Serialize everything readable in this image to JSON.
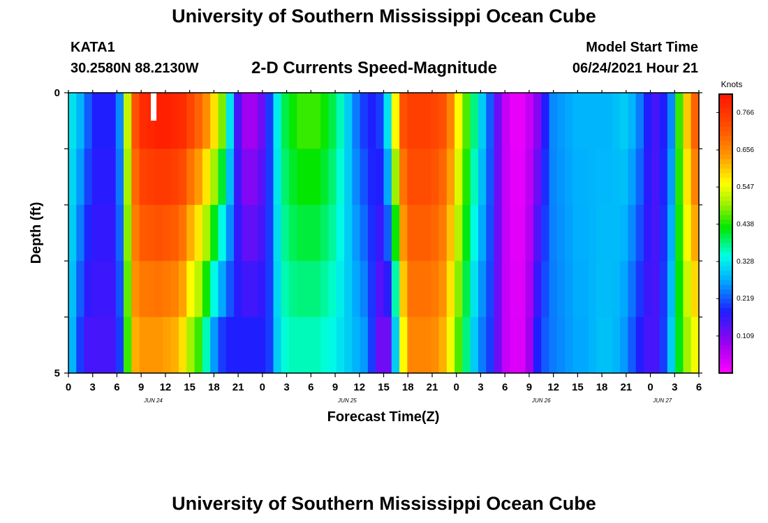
{
  "page": {
    "title_top": "University of Southern Mississippi Ocean Cube",
    "title_bottom": "University of Southern Mississippi Ocean Cube",
    "station": "KATA1",
    "location": "30.2580N  88.2130W",
    "subtitle": "2-D Currents Speed-Magnitude",
    "model_start_label": "Model Start Time",
    "model_start_value": "06/24/2021 Hour 21"
  },
  "chart_data": {
    "type": "heatmap",
    "title": "2-D Currents Speed-Magnitude",
    "xlabel": "Forecast Time(Z)",
    "ylabel": "Depth (ft)",
    "ylim": [
      0,
      5
    ],
    "x_hours_range": [
      0,
      78
    ],
    "y_tick_labels": [
      "0",
      "5"
    ],
    "x_tick_labels": [
      "0",
      "3",
      "6",
      "9",
      "12",
      "15",
      "18",
      "21",
      "0",
      "3",
      "6",
      "9",
      "12",
      "15",
      "18",
      "21",
      "0",
      "3",
      "6",
      "9",
      "12",
      "15",
      "18",
      "21",
      "0",
      "3",
      "6"
    ],
    "date_labels": [
      {
        "label": "JUN 24",
        "hour": 10.5
      },
      {
        "label": "JUN 25",
        "hour": 34.5
      },
      {
        "label": "JUN 26",
        "hour": 58.5
      },
      {
        "label": "JUN 27",
        "hour": 73.5
      }
    ],
    "colorbar": {
      "unit": "Knots",
      "min": 0,
      "max": 0.82,
      "tick_labels": [
        "0.766",
        "0.656",
        "0.547",
        "0.438",
        "0.328",
        "0.219",
        "0.109"
      ]
    },
    "depth_rows": 5,
    "speed_surface_knots": [
      0.32,
      0.28,
      0.22,
      0.18,
      0.18,
      0.18,
      0.25,
      0.52,
      0.72,
      0.78,
      0.79,
      0.8,
      0.8,
      0.79,
      0.78,
      0.74,
      0.7,
      0.65,
      0.58,
      0.48,
      0.32,
      0.15,
      0.08,
      0.08,
      0.12,
      0.2,
      0.33,
      0.4,
      0.43,
      0.45,
      0.45,
      0.45,
      0.43,
      0.4,
      0.36,
      0.3,
      0.24,
      0.2,
      0.18,
      0.2,
      0.32,
      0.56,
      0.72,
      0.75,
      0.75,
      0.75,
      0.74,
      0.72,
      0.66,
      0.56,
      0.46,
      0.38,
      0.3,
      0.22,
      0.12,
      0.05,
      0.02,
      0.02,
      0.05,
      0.1,
      0.18,
      0.25,
      0.26,
      0.27,
      0.28,
      0.28,
      0.28,
      0.28,
      0.28,
      0.29,
      0.3,
      0.28,
      0.24,
      0.18,
      0.15,
      0.18,
      0.25,
      0.45,
      0.6,
      0.7
    ],
    "speed_bottom_knots": [
      0.28,
      0.2,
      0.15,
      0.15,
      0.15,
      0.15,
      0.2,
      0.45,
      0.62,
      0.64,
      0.64,
      0.64,
      0.63,
      0.62,
      0.58,
      0.5,
      0.45,
      0.36,
      0.26,
      0.2,
      0.18,
      0.18,
      0.18,
      0.18,
      0.18,
      0.2,
      0.3,
      0.35,
      0.36,
      0.36,
      0.36,
      0.36,
      0.35,
      0.34,
      0.32,
      0.3,
      0.28,
      0.26,
      0.2,
      0.12,
      0.12,
      0.3,
      0.56,
      0.66,
      0.66,
      0.66,
      0.65,
      0.62,
      0.55,
      0.46,
      0.38,
      0.3,
      0.24,
      0.2,
      0.12,
      0.05,
      0.03,
      0.03,
      0.08,
      0.18,
      0.22,
      0.24,
      0.25,
      0.26,
      0.27,
      0.27,
      0.28,
      0.29,
      0.29,
      0.28,
      0.26,
      0.22,
      0.18,
      0.15,
      0.15,
      0.2,
      0.3,
      0.42,
      0.5,
      0.55
    ]
  }
}
